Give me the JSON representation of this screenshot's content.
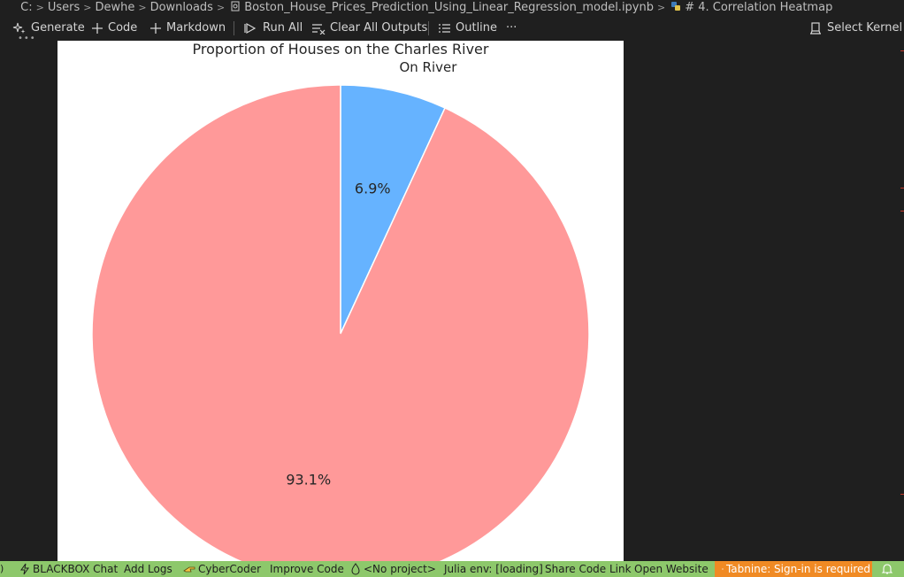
{
  "breadcrumb": {
    "drive": "C:",
    "users": "Users",
    "user": "Dewhe",
    "downloads": "Downloads",
    "file": "Boston_House_Prices_Prediction_Using_Linear_Regression_model.ipynb",
    "section": "# 4. Correlation Heatmap"
  },
  "toolbar": {
    "generate": "Generate",
    "code": "Code",
    "markdown": "Markdown",
    "run_all": "Run All",
    "clear_all": "Clear All Outputs",
    "outline": "Outline",
    "more": "···",
    "select_kernel": "Select Kernel"
  },
  "chart_data": {
    "type": "pie",
    "title": "Proportion of Houses on the Charles River",
    "labels": [
      "On River",
      ""
    ],
    "values": [
      6.9,
      93.1
    ],
    "value_labels": [
      "6.9%",
      "93.1%"
    ],
    "colors": [
      "#66b3ff",
      "#ff9999"
    ]
  },
  "statusbar": {
    "blackbox": "BLACKBOX Chat",
    "add_logs": "Add Logs",
    "cybercoder": "CyberCoder",
    "improve": "Improve Code",
    "project": "<No project>",
    "julia": "Julia env: [loading]",
    "share": "Share Code Link",
    "website": "Open Website",
    "tabnine": "Tabnine: Sign-in is required"
  }
}
